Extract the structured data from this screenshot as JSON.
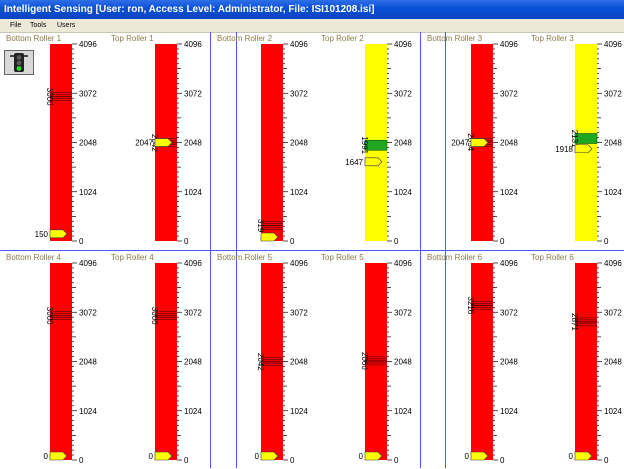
{
  "window": {
    "title": "Intelligent Sensing [User: ron, Access Level: Administrator, File: ISI101208.isi]"
  },
  "menu": [
    {
      "label": "File"
    },
    {
      "label": "Tools"
    },
    {
      "label": "Users"
    }
  ],
  "gauge_scale": {
    "ticks": [
      "4096",
      "3072",
      "2048",
      "1024",
      "0"
    ],
    "max": 4096
  },
  "colors": {
    "alarm": "#ff0000",
    "warning": "#ffff00",
    "ok_band": "#1fa81f",
    "pointer": "#ffff00"
  },
  "status_icon": "traffic-light-icon",
  "rollers": [
    {
      "name": "Bottom Roller 1",
      "bar_color": "red",
      "pointer_value": 150,
      "pointer_label": "150",
      "band_value": 3000,
      "band_label": "3000",
      "band_color": "red"
    },
    {
      "name": "Top Roller 1",
      "bar_color": "red",
      "pointer_value": 2047,
      "pointer_label": "2047",
      "band_value": 2042,
      "band_label": "2042",
      "band_color": "red"
    },
    {
      "name": "Bottom Roller 2",
      "bar_color": "red",
      "pointer_value": 0,
      "pointer_label": "",
      "band_value": 319,
      "band_label": "319",
      "band_color": "red"
    },
    {
      "name": "Top Roller 2",
      "bar_color": "yellow",
      "pointer_value": 1647,
      "pointer_label": "1647",
      "band_value": 1991,
      "band_label": "1991",
      "band_color": "green"
    },
    {
      "name": "Bottom Roller 3",
      "bar_color": "red",
      "pointer_value": 2047,
      "pointer_label": "2047",
      "band_value": 2054,
      "band_label": "2054",
      "band_color": "red"
    },
    {
      "name": "Top Roller 3",
      "bar_color": "yellow",
      "pointer_value": 1918,
      "pointer_label": "1918",
      "band_value": 2131,
      "band_label": "2131",
      "band_color": "green"
    },
    {
      "name": "Bottom Roller 4",
      "bar_color": "red",
      "pointer_value": 0,
      "pointer_label": "0",
      "band_value": 3000,
      "band_label": "3000",
      "band_color": "red"
    },
    {
      "name": "Top Roller 4",
      "bar_color": "red",
      "pointer_value": 0,
      "pointer_label": "0",
      "band_value": 3000,
      "band_label": "3000",
      "band_color": "red"
    },
    {
      "name": "Bottom Roller 5",
      "bar_color": "red",
      "pointer_value": 0,
      "pointer_label": "0",
      "band_value": 2042,
      "band_label": "2042",
      "band_color": "red"
    },
    {
      "name": "Top Roller 5",
      "bar_color": "red",
      "pointer_value": 0,
      "pointer_label": "0",
      "band_value": 2060,
      "band_label": "2060",
      "band_color": "red"
    },
    {
      "name": "Bottom Roller 6",
      "bar_color": "red",
      "pointer_value": 0,
      "pointer_label": "0",
      "band_value": 3216,
      "band_label": "3216",
      "band_color": "red"
    },
    {
      "name": "Top Roller 6",
      "bar_color": "red",
      "pointer_value": 0,
      "pointer_label": "0",
      "band_value": 2871,
      "band_label": "2871",
      "band_color": "red"
    }
  ]
}
